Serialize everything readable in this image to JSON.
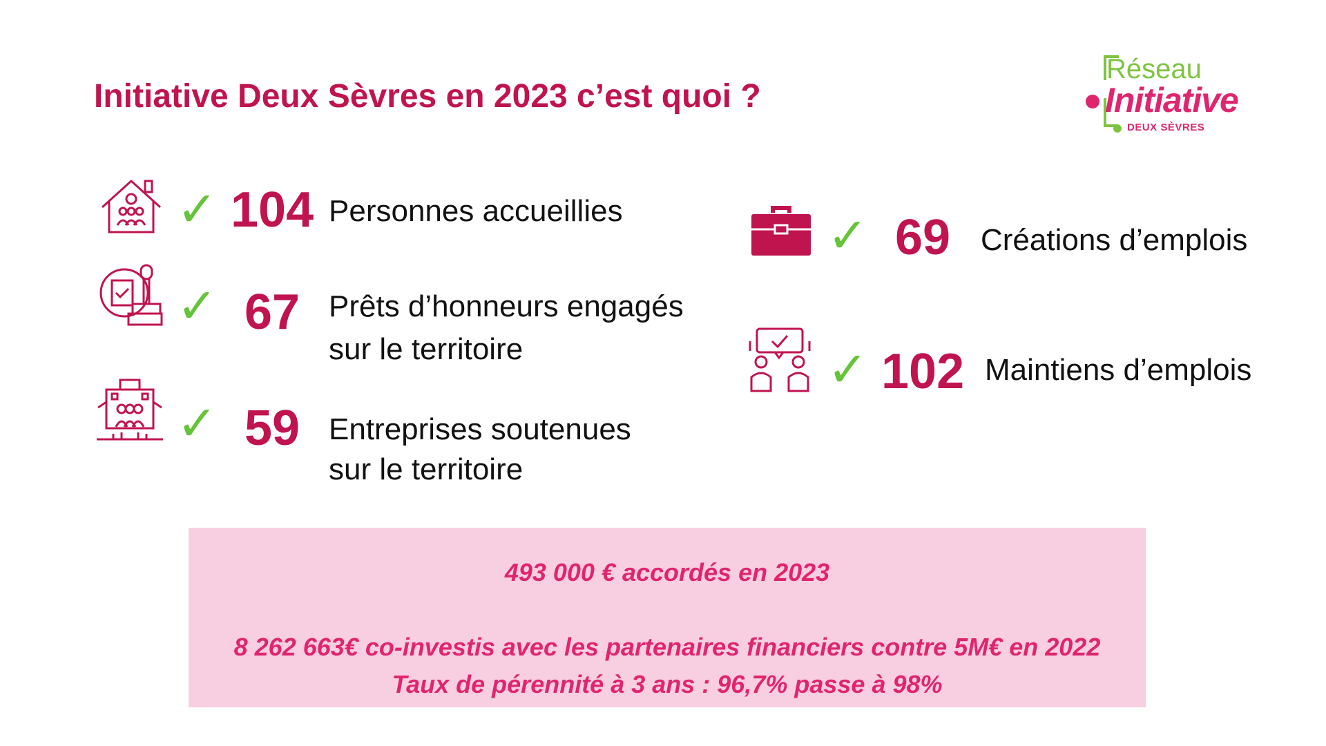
{
  "title": "Initiative Deux Sèvres en 2023 c’est quoi ?",
  "logo": {
    "line1": "Réseau",
    "line2": "Initiative",
    "line3": "DEUX SÈVRES"
  },
  "stats": [
    {
      "icon": "house-people-icon",
      "value": "104",
      "label_lines": [
        "Personnes accueillies"
      ]
    },
    {
      "icon": "stamp-document-icon",
      "value": "67",
      "label_lines": [
        "Prêts d’honneurs engagés",
        "sur le territoire"
      ]
    },
    {
      "icon": "building-people-icon",
      "value": "59",
      "label_lines": [
        "Entreprises soutenues",
        "sur le territoire"
      ]
    },
    {
      "icon": "briefcase-icon",
      "value": "69",
      "label_lines": [
        "Créations d’emplois"
      ]
    },
    {
      "icon": "meeting-people-icon",
      "value": "102",
      "label_lines": [
        "Maintiens d’emplois"
      ]
    }
  ],
  "check_glyph": "✓",
  "summary": {
    "line1": "493 000 € accordés en 2023",
    "line2": "8 262 663€ co-investis avec les partenaires financiers contre 5M€ en 2022",
    "line3": "Taux de pérennité à 3 ans : 96,7% passe à 98%"
  },
  "colors": {
    "accent": "#c0144e",
    "pink_text": "#e0256f",
    "check": "#66c43a",
    "box_bg": "#f8cfe0",
    "logo_green": "#7ec441"
  }
}
